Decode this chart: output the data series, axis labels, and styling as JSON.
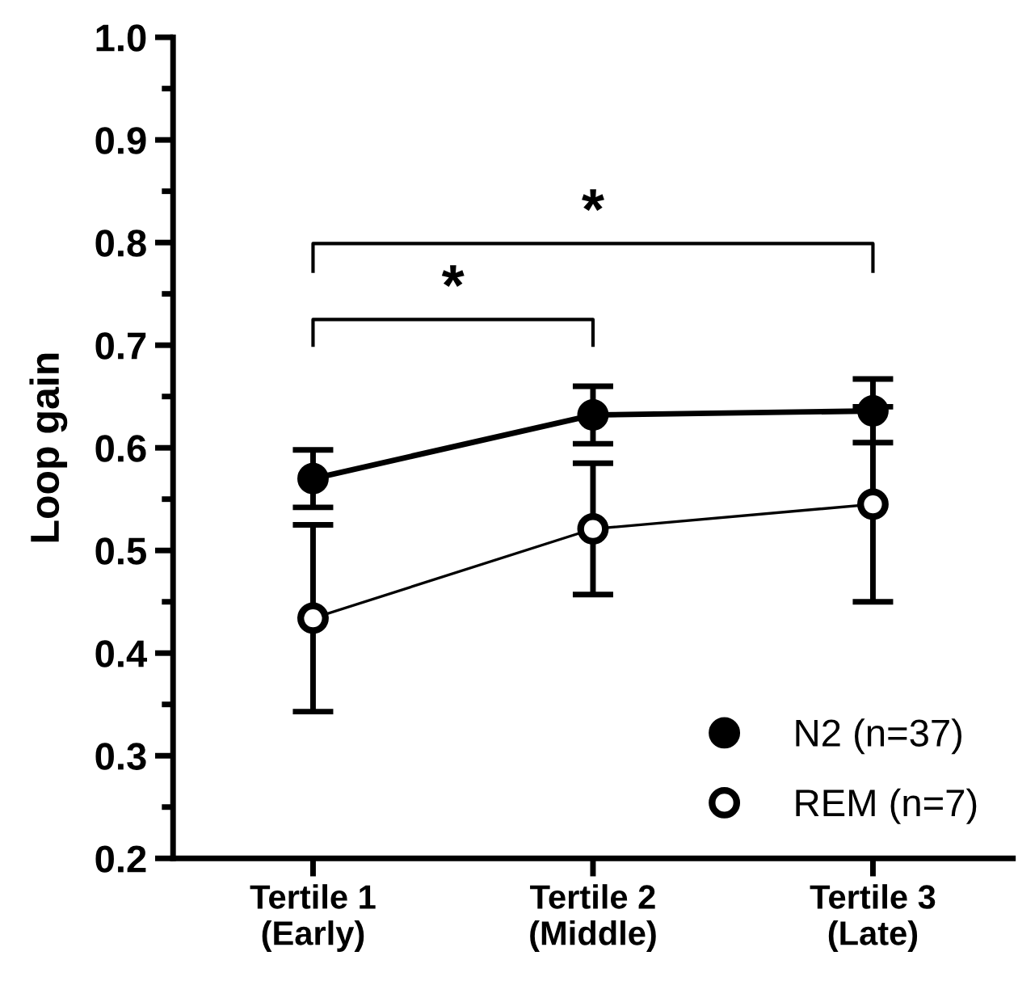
{
  "chart_data": {
    "type": "line",
    "ylabel": "Loop gain",
    "categories": [
      "Tertile 1\n(Early)",
      "Tertile 2\n(Middle)",
      "Tertile 3\n(Late)"
    ],
    "series": [
      {
        "name": "N2 (n=37)",
        "color": "#000000",
        "marker": "circle",
        "values": [
          0.57,
          0.632,
          0.636
        ],
        "errors": [
          0.028,
          0.028,
          0.031
        ]
      },
      {
        "name": "REM (n=7)",
        "color": "#000000",
        "marker": "circle",
        "values": [
          0.434,
          0.521,
          0.545
        ],
        "errors": [
          0.091,
          0.064,
          0.095
        ]
      }
    ],
    "ylim": [
      0.2,
      1.0
    ],
    "yticks": [
      0.2,
      0.3,
      0.4,
      0.5,
      0.6,
      0.7,
      0.8,
      0.9,
      {
        "value": 1.0,
        "label": "1.0"
      }
    ],
    "annotations": [
      "*",
      "*"
    ],
    "grid": false,
    "legend": "bottom right"
  }
}
